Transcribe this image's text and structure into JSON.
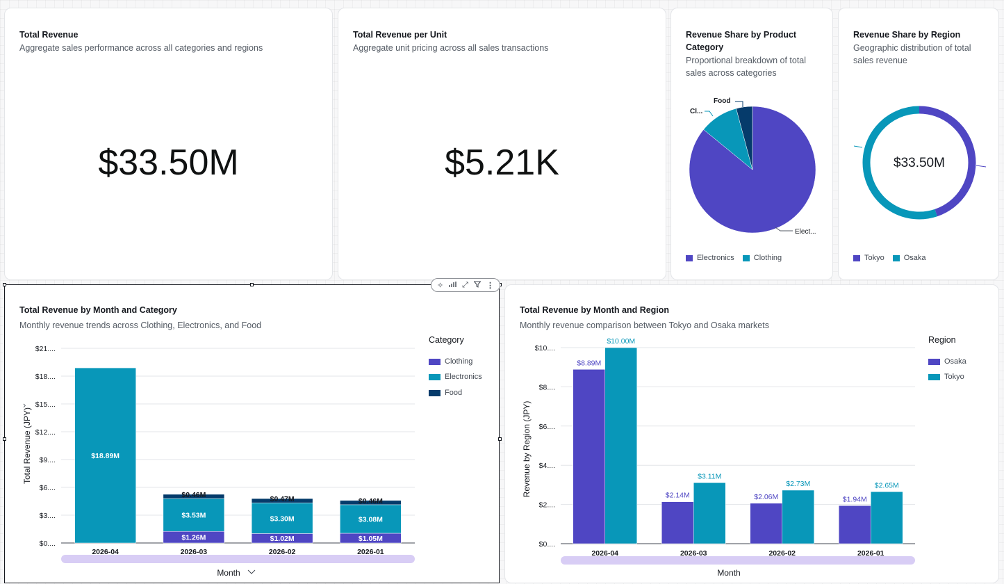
{
  "colors": {
    "purple": "#4f46c3",
    "teal": "#0897b9",
    "navy": "#053b6b",
    "track": "#d8cdf5"
  },
  "kpi_revenue": {
    "title": "Total Revenue",
    "subtitle": "Aggregate sales performance across all categories and regions",
    "value": "$33.50M"
  },
  "kpi_unit": {
    "title": "Total Revenue per Unit",
    "subtitle": "Aggregate unit pricing across all sales transactions",
    "value": "$5.21K"
  },
  "pie_category": {
    "title_line1": "Revenue Share by Product",
    "title_line2": "Category",
    "subtitle_line1": "Proportional breakdown of total",
    "subtitle_line2": "sales across categories",
    "legend": [
      "Electronics",
      "Clothing"
    ],
    "callouts": {
      "electronics": "Elect...",
      "clothing": "Cl...",
      "food": "Food"
    }
  },
  "donut_region": {
    "title": "Revenue Share by Region",
    "subtitle_line1": "Geographic distribution of total",
    "subtitle_line2": "sales revenue",
    "center": "$33.50M",
    "legend": [
      "Tokyo",
      "Osaka"
    ]
  },
  "bar_category": {
    "title": "Total Revenue by Month and Category",
    "subtitle": "Monthly revenue trends across Clothing, Electronics, and Food",
    "legend_title": "Category",
    "legend": [
      "Clothing",
      "Electronics",
      "Food"
    ],
    "ylabel": "Total Revenue (JPY)",
    "xlabel": "Month",
    "yticks": [
      "$0....",
      "$3....",
      "$6....",
      "$9....",
      "$12....",
      "$15....",
      "$18....",
      "$21...."
    ],
    "categories": [
      "2026-04",
      "2026-03",
      "2026-02",
      "2026-01"
    ],
    "labels": {
      "clothing": [
        "",
        "$1.26M",
        "$1.02M",
        "$1.05M"
      ],
      "electronics": [
        "$18.89M",
        "$3.53M",
        "$3.30M",
        "$3.08M"
      ],
      "food": [
        "",
        "$0.46M",
        "$0.47M",
        "$0.46M"
      ]
    }
  },
  "bar_region": {
    "title": "Total Revenue by Month and Region",
    "subtitle": "Monthly revenue comparison between Tokyo and Osaka markets",
    "legend_title": "Region",
    "legend": [
      "Osaka",
      "Tokyo"
    ],
    "ylabel": "Revenue by Region (JPY)",
    "xlabel": "Month",
    "yticks": [
      "$0....",
      "$2....",
      "$4....",
      "$6....",
      "$8....",
      "$10...."
    ],
    "categories": [
      "2026-04",
      "2026-03",
      "2026-02",
      "2026-01"
    ],
    "labels": {
      "osaka": [
        "$8.89M",
        "$2.14M",
        "$2.06M",
        "$1.94M"
      ],
      "tokyo": [
        "$10.00M",
        "$3.11M",
        "$2.73M",
        "$2.65M"
      ]
    }
  },
  "chart_data": [
    {
      "type": "pie",
      "title": "Revenue Share by Product Category",
      "slices": [
        {
          "name": "Electronics",
          "value": 28.8
        },
        {
          "name": "Clothing",
          "value": 3.33
        },
        {
          "name": "Food",
          "value": 1.39
        }
      ]
    },
    {
      "type": "pie",
      "title": "Revenue Share by Region",
      "donut": true,
      "slices": [
        {
          "name": "Tokyo",
          "value": 18.49
        },
        {
          "name": "Osaka",
          "value": 15.03
        }
      ]
    },
    {
      "type": "bar",
      "stacked": true,
      "title": "Total Revenue by Month and Category",
      "categories": [
        "2026-04",
        "2026-03",
        "2026-02",
        "2026-01"
      ],
      "series": [
        {
          "name": "Clothing",
          "values": [
            0,
            1.26,
            1.02,
            1.05
          ]
        },
        {
          "name": "Electronics",
          "values": [
            18.89,
            3.53,
            3.3,
            3.08
          ]
        },
        {
          "name": "Food",
          "values": [
            0,
            0.46,
            0.47,
            0.46
          ]
        }
      ],
      "xlabel": "Month",
      "ylabel": "Total Revenue (JPY)",
      "ylim": [
        0,
        21
      ],
      "grid": true,
      "legend": "right"
    },
    {
      "type": "bar",
      "stacked": false,
      "title": "Total Revenue by Month and Region",
      "categories": [
        "2026-04",
        "2026-03",
        "2026-02",
        "2026-01"
      ],
      "series": [
        {
          "name": "Osaka",
          "values": [
            8.89,
            2.14,
            2.06,
            1.94
          ]
        },
        {
          "name": "Tokyo",
          "values": [
            10.0,
            3.11,
            2.73,
            2.65
          ]
        }
      ],
      "xlabel": "Month",
      "ylabel": "Revenue by Region (JPY)",
      "ylim": [
        0,
        10
      ],
      "grid": true,
      "legend": "right"
    }
  ]
}
